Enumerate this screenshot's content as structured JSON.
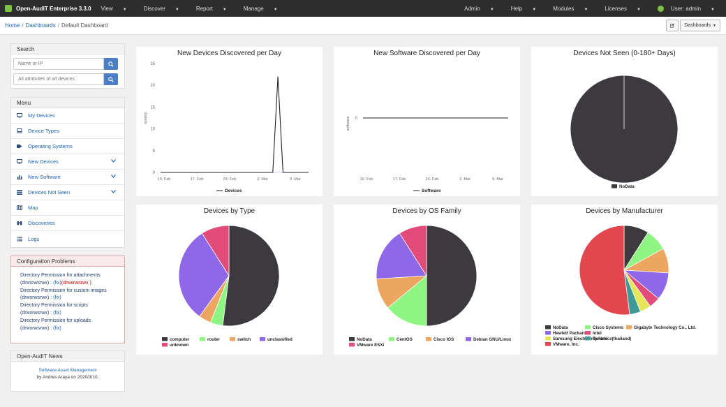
{
  "navbar": {
    "brand": "Open-AudIT Enterprise 3.3.0",
    "menu": [
      "View",
      "Discover",
      "Report",
      "Manage"
    ],
    "right": [
      "Admin",
      "Help",
      "Modules",
      "Licenses"
    ],
    "user": "User: admin"
  },
  "breadcrumb": {
    "home": "Home",
    "dashboards": "Dashboards",
    "current": "Default Dashboard",
    "dashboards_button": "Dashboards"
  },
  "search": {
    "title": "Search",
    "placeholder1": "Name or IP",
    "placeholder2": "All attributes of all devices"
  },
  "menu": {
    "title": "Menu",
    "items": [
      {
        "label": "My Devices",
        "icon": "monitor-icon"
      },
      {
        "label": "Device Types",
        "icon": "laptop-icon"
      },
      {
        "label": "Operating Systems",
        "icon": "tags-icon"
      },
      {
        "label": "New Devices",
        "icon": "monitor-icon"
      },
      {
        "label": "New Software",
        "icon": "bar-chart-icon"
      },
      {
        "label": "Devices Not Seen",
        "icon": "server-icon"
      },
      {
        "label": "Map",
        "icon": "map-icon"
      },
      {
        "label": "Discoveries",
        "icon": "binoculars-icon"
      },
      {
        "label": "Logs",
        "icon": "list-icon"
      }
    ]
  },
  "config": {
    "title": "Configuration Problems",
    "attachments": "Directory Permission for attachments",
    "attachments_perm": "(drwxrwsrwx) : ",
    "attachments_fix": "(fix)",
    "attachments_bad": "(drwxrwsrwx )",
    "custom_images": "Directory Permission for custom images",
    "custom_images_perm": "(drwxrwsrwx) : ",
    "custom_images_fix": "(fix)",
    "scripts": "Directory Permission for scripts",
    "scripts_perm": "(drwxrwsrwx) : ",
    "scripts_fix": "(fix)",
    "uploads": "Directory Permission for uploads",
    "uploads_perm": "(drwxrwsrwx) : ",
    "uploads_fix": "(fix)"
  },
  "news": {
    "title": "Open-AudIT News",
    "link": "Software Asset Management",
    "byline": "by Andres Araya on 2020/3/10."
  },
  "colors": {
    "nodata": "#3c3a3f",
    "green": "#8ef582",
    "orange": "#eda65f",
    "purple": "#8e68e6",
    "pink": "#e34c7a",
    "teal": "#3f9a97",
    "yellow": "#e6e65a",
    "red": "#e2464f"
  },
  "chart_data": [
    {
      "type": "line",
      "title": "New Devices Discovered per Day",
      "ylabel": "system",
      "xticks": [
        "10. Feb",
        "17. Feb",
        "24. Feb",
        "2. Mar",
        "9. Mar"
      ],
      "yticks": [
        0,
        5,
        10,
        15,
        20,
        25
      ],
      "ylim": [
        0,
        25
      ],
      "series": [
        {
          "name": "Devices",
          "values": [
            0,
            0,
            0,
            0,
            0,
            0,
            0,
            0,
            0,
            0,
            0,
            0,
            0,
            0,
            0,
            0,
            0,
            0,
            0,
            0,
            0,
            0,
            0,
            22,
            0,
            0,
            0,
            0,
            0,
            0
          ]
        }
      ]
    },
    {
      "type": "line",
      "title": "New Software Discovered per Day",
      "ylabel": "software",
      "xticks": [
        "10. Feb",
        "17. Feb",
        "24. Feb",
        "2. Mar",
        "9. Mar"
      ],
      "yticks": [
        0
      ],
      "series": [
        {
          "name": "Software",
          "values": [
            0,
            0,
            0,
            0,
            0,
            0,
            0,
            0,
            0,
            0,
            0,
            0,
            0,
            0,
            0,
            0,
            0,
            0,
            0,
            0,
            0,
            0,
            0,
            0,
            0,
            0,
            0,
            0,
            0,
            0
          ]
        }
      ]
    },
    {
      "type": "pie",
      "title": "Devices Not Seen (0-180+ Days)",
      "slices": [
        {
          "name": "NoData",
          "value": 100,
          "color": "#3c3a3f"
        }
      ]
    },
    {
      "type": "pie",
      "title": "Devices by Type",
      "slices": [
        {
          "name": "computer",
          "value": 52,
          "color": "#3c3a3f"
        },
        {
          "name": "router",
          "value": 4,
          "color": "#8ef582"
        },
        {
          "name": "switch",
          "value": 4,
          "color": "#eda65f"
        },
        {
          "name": "unclassified",
          "value": 31,
          "color": "#8e68e6"
        },
        {
          "name": "unknown",
          "value": 9,
          "color": "#e34c7a"
        }
      ]
    },
    {
      "type": "pie",
      "title": "Devices by OS Family",
      "slices": [
        {
          "name": "NoData",
          "value": 50,
          "color": "#3c3a3f"
        },
        {
          "name": "CentOS",
          "value": 14,
          "color": "#8ef582"
        },
        {
          "name": "Cisco IOS",
          "value": 10,
          "color": "#eda65f"
        },
        {
          "name": "Debian GNU/Linux",
          "value": 17,
          "color": "#8e68e6"
        },
        {
          "name": "VMware ESXi",
          "value": 9,
          "color": "#e34c7a"
        }
      ]
    },
    {
      "type": "pie",
      "title": "Devices by Manufacturer",
      "slices": [
        {
          "name": "NoData",
          "value": 9,
          "color": "#3c3a3f"
        },
        {
          "name": "Cisco Systems",
          "value": 8,
          "color": "#8ef582"
        },
        {
          "name": "Gigabyte Technology Co., Ltd.",
          "value": 9,
          "color": "#eda65f"
        },
        {
          "name": "Hewlett Packard",
          "value": 10,
          "color": "#8e68e6"
        },
        {
          "name": "Intel",
          "value": 4,
          "color": "#e34c7a"
        },
        {
          "name": "Samsung Electro-mechanics(thailand)",
          "value": 4,
          "color": "#e6e65a"
        },
        {
          "name": "Tp-link",
          "value": 4,
          "color": "#3f9a97"
        },
        {
          "name": "VMware, Inc.",
          "value": 52,
          "color": "#e2464f"
        }
      ]
    }
  ]
}
